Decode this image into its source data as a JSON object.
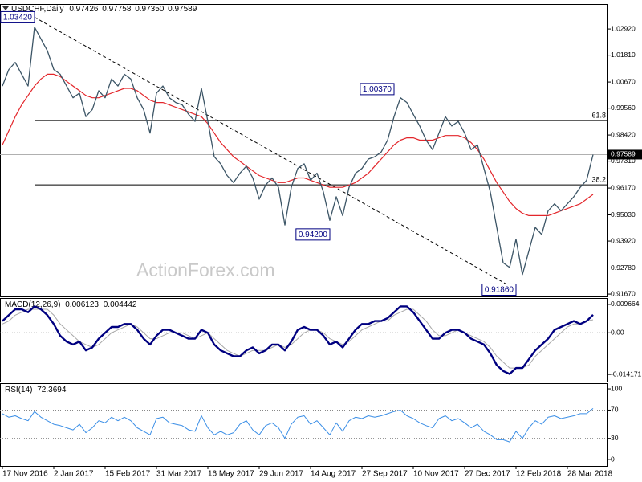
{
  "chart_data": [
    {
      "type": "line",
      "symbol": "USDCHF,Daily",
      "quote": [
        "0.97426",
        "0.97758",
        "0.97350",
        "0.97589"
      ],
      "watermark": "ActionForex.com",
      "xlim": [
        -0.375,
        94.25
      ],
      "ylim": [
        0.9157,
        1.0398
      ],
      "yticks": [
        {
          "value": 0.9167,
          "label": "0.91670"
        },
        {
          "value": 0.9278,
          "label": "0.92780"
        },
        {
          "value": 0.9392,
          "label": "0.93920"
        },
        {
          "value": 0.9503,
          "label": "0.95030"
        },
        {
          "value": 0.9617,
          "label": "0.96170"
        },
        {
          "value": 0.9731,
          "label": "0.97310"
        },
        {
          "value": 0.9842,
          "label": "0.98420"
        },
        {
          "value": 0.9956,
          "label": "0.99560"
        },
        {
          "value": 1.0067,
          "label": "1.00670"
        },
        {
          "value": 1.0181,
          "label": "1.01810"
        },
        {
          "value": 1.0292,
          "label": "1.02920"
        }
      ],
      "series": [
        {
          "color": "#3c5566",
          "values": [
            1.005,
            1.012,
            1.015,
            1.01,
            1.005,
            1.03,
            1.025,
            1.02,
            1.012,
            1.01,
            1.005,
            1.0,
            1.002,
            0.992,
            0.995,
            1.003,
            1.0,
            1.008,
            1.005,
            1.01,
            1.008,
            1.0,
            0.995,
            0.985,
            1.002,
            1.005,
            1.0,
            0.998,
            0.997,
            0.993,
            0.99,
            1.004,
            0.99,
            0.975,
            0.972,
            0.967,
            0.964,
            0.968,
            0.971,
            0.966,
            0.957,
            0.963,
            0.966,
            0.962,
            0.946,
            0.962,
            0.97,
            0.972,
            0.965,
            0.968,
            0.96,
            0.948,
            0.958,
            0.95,
            0.962,
            0.968,
            0.97,
            0.974,
            0.975,
            0.977,
            0.982,
            0.992,
            1.0,
            0.998,
            0.993,
            0.988,
            0.982,
            0.978,
            0.985,
            0.992,
            0.988,
            0.99,
            0.985,
            0.978,
            0.98,
            0.97,
            0.96,
            0.945,
            0.93,
            0.928,
            0.94,
            0.925,
            0.935,
            0.945,
            0.942,
            0.952,
            0.955,
            0.952,
            0.955,
            0.958,
            0.962,
            0.965,
            0.97589
          ]
        },
        {
          "color": "#e3262b",
          "values": [
            0.98,
            0.986,
            0.992,
            0.997,
            1.001,
            1.005,
            1.008,
            1.01,
            1.01,
            1.009,
            1.007,
            1.005,
            1.003,
            1.001,
            1.0,
            1.0,
            1.001,
            1.002,
            1.003,
            1.004,
            1.004,
            1.003,
            1.001,
            0.999,
            0.998,
            0.998,
            0.997,
            0.996,
            0.995,
            0.994,
            0.993,
            0.992,
            0.989,
            0.985,
            0.981,
            0.978,
            0.975,
            0.973,
            0.971,
            0.969,
            0.967,
            0.966,
            0.965,
            0.964,
            0.964,
            0.965,
            0.966,
            0.966,
            0.965,
            0.964,
            0.963,
            0.962,
            0.962,
            0.962,
            0.963,
            0.964,
            0.966,
            0.968,
            0.971,
            0.974,
            0.977,
            0.98,
            0.982,
            0.983,
            0.983,
            0.982,
            0.982,
            0.982,
            0.983,
            0.984,
            0.984,
            0.984,
            0.983,
            0.981,
            0.978,
            0.974,
            0.969,
            0.964,
            0.96,
            0.956,
            0.953,
            0.951,
            0.95,
            0.95,
            0.95,
            0.95,
            0.951,
            0.952,
            0.953,
            0.954,
            0.955,
            0.957,
            0.959
          ]
        }
      ],
      "levels": [
        {
          "label": "61.8",
          "value": 0.99033
        },
        {
          "label": "38.2",
          "value": 0.96306
        }
      ],
      "annotations": [
        {
          "label": "1.03420",
          "value": 1.0342,
          "x": 5
        },
        {
          "label": "1.00370",
          "value": 1.0037,
          "x": 61
        },
        {
          "label": "0.94200",
          "value": 0.942,
          "x": 51
        },
        {
          "label": "0.91860",
          "value": 0.9186,
          "x": 80
        }
      ],
      "last_price": {
        "value": 0.97589,
        "label": "0.97589"
      }
    },
    {
      "type": "line",
      "title": "MACD(12,26,9)",
      "xlim": [
        -0.375,
        94.25
      ],
      "ylim": [
        -0.016609,
        0.011831
      ],
      "yticks": [
        -0.014171,
        {
          "value": 0,
          "label": "0.00"
        },
        0.009664
      ],
      "levels": [
        0
      ],
      "series": [
        {
          "color": "#000080",
          "values": [
            0.004,
            0.006,
            0.008,
            0.008,
            0.007,
            0.009,
            0.008,
            0.006,
            0.003,
            -0.001,
            -0.003,
            -0.004,
            -0.003,
            -0.006,
            -0.005,
            -0.002,
            0.0,
            0.002,
            0.002,
            0.003,
            0.003,
            0.001,
            -0.002,
            -0.004,
            -0.001,
            0.001,
            0.001,
            0.0,
            -0.001,
            -0.002,
            -0.002,
            0.001,
            0.0,
            -0.004,
            -0.006,
            -0.007,
            -0.008,
            -0.008,
            -0.006,
            -0.005,
            -0.007,
            -0.006,
            -0.004,
            -0.004,
            -0.006,
            -0.003,
            0.001,
            0.002,
            0.001,
            0.001,
            -0.001,
            -0.004,
            -0.003,
            -0.005,
            -0.002,
            0.001,
            0.003,
            0.003,
            0.004,
            0.004,
            0.005,
            0.007,
            0.009,
            0.009,
            0.007,
            0.004,
            0.001,
            -0.002,
            -0.002,
            0.0,
            0.001,
            0.001,
            0.0,
            -0.002,
            -0.003,
            -0.004,
            -0.007,
            -0.011,
            -0.013,
            -0.014,
            -0.012,
            -0.012,
            -0.009,
            -0.006,
            -0.004,
            -0.002,
            0.001,
            0.002,
            0.003,
            0.004,
            0.003,
            0.004,
            0.006123
          ]
        },
        {
          "color": "#a8a8a8",
          "values": [
            0.003,
            0.004,
            0.006,
            0.007,
            0.008,
            0.008,
            0.008,
            0.008,
            0.006,
            0.003,
            0.001,
            -0.001,
            -0.003,
            -0.004,
            -0.005,
            -0.004,
            -0.002,
            0.0,
            0.001,
            0.002,
            0.003,
            0.002,
            0.0,
            -0.002,
            -0.002,
            -0.001,
            0.0,
            0.0,
            0.0,
            -0.001,
            -0.002,
            -0.001,
            0.0,
            -0.002,
            -0.004,
            -0.006,
            -0.007,
            -0.008,
            -0.007,
            -0.006,
            -0.006,
            -0.006,
            -0.005,
            -0.004,
            -0.005,
            -0.004,
            -0.002,
            0.0,
            0.001,
            0.001,
            0.0,
            -0.002,
            -0.003,
            -0.004,
            -0.003,
            -0.001,
            0.001,
            0.002,
            0.003,
            0.004,
            0.004,
            0.006,
            0.007,
            0.008,
            0.008,
            0.006,
            0.004,
            0.001,
            -0.001,
            -0.001,
            0.0,
            0.001,
            0.0,
            -0.001,
            -0.002,
            -0.003,
            -0.005,
            -0.008,
            -0.01,
            -0.012,
            -0.012,
            -0.012,
            -0.011,
            -0.008,
            -0.006,
            -0.004,
            -0.002,
            0.0,
            0.002,
            0.003,
            0.003,
            0.004,
            0.004442
          ]
        }
      ]
    },
    {
      "type": "line",
      "title": "RSI(14)",
      "xlim": [
        -0.375,
        94.25
      ],
      "ylim": [
        -9,
        108
      ],
      "yticks": [
        0,
        30,
        70,
        100
      ],
      "levels": [
        30,
        70
      ],
      "xticks": [
        {
          "value": 0,
          "label": "17 Nov 2016"
        },
        {
          "value": 8,
          "label": "2 Jan 2017"
        },
        {
          "value": 16,
          "label": "15 Feb 2017"
        },
        {
          "value": 24,
          "label": "31 Mar 2017"
        },
        {
          "value": 32,
          "label": "16 May 2017"
        },
        {
          "value": 40,
          "label": "29 Jun 2017"
        },
        {
          "value": 48,
          "label": "14 Aug 2017"
        },
        {
          "value": 56,
          "label": "27 Sep 2017"
        },
        {
          "value": 64,
          "label": "10 Nov 2017"
        },
        {
          "value": 72,
          "label": "27 Dec 2017"
        },
        {
          "value": 80,
          "label": "12 Feb 2018"
        },
        {
          "value": 88,
          "label": "28 Mar 2018"
        }
      ],
      "series": [
        {
          "color": "#3a8ee6",
          "values": [
            65,
            60,
            62,
            58,
            55,
            68,
            60,
            55,
            50,
            48,
            45,
            42,
            50,
            38,
            45,
            55,
            52,
            60,
            55,
            60,
            55,
            45,
            40,
            35,
            58,
            60,
            52,
            50,
            48,
            42,
            40,
            62,
            45,
            35,
            40,
            35,
            38,
            50,
            55,
            42,
            35,
            48,
            52,
            45,
            30,
            50,
            60,
            62,
            50,
            55,
            45,
            35,
            52,
            40,
            55,
            60,
            58,
            62,
            60,
            62,
            65,
            68,
            70,
            62,
            58,
            52,
            48,
            45,
            58,
            62,
            55,
            58,
            52,
            45,
            50,
            40,
            35,
            28,
            28,
            25,
            40,
            30,
            45,
            55,
            50,
            60,
            62,
            58,
            60,
            62,
            65,
            65,
            72.3694
          ]
        }
      ]
    }
  ]
}
